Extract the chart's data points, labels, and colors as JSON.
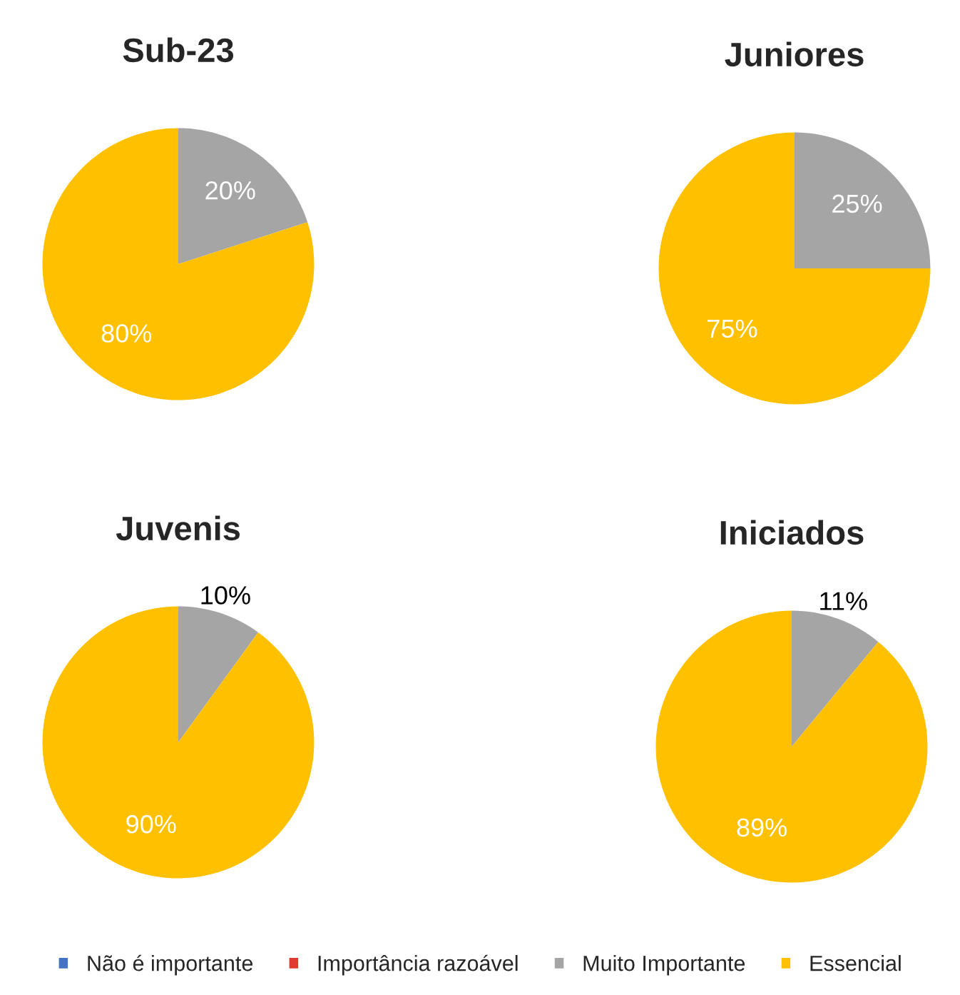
{
  "chart_data": [
    {
      "type": "pie",
      "title": "Sub-23",
      "categories": [
        "Não é importante",
        "Importância razoável",
        "Muito Importante",
        "Essencial"
      ],
      "values": [
        0,
        0,
        20,
        80
      ],
      "colors": [
        "#4472c4",
        "#e03c31",
        "#a5a5a5",
        "#ffc000"
      ],
      "value_labels": [
        null,
        null,
        "20%",
        "80%"
      ],
      "legend": "bottom"
    },
    {
      "type": "pie",
      "title": "Juniores",
      "values": [
        0,
        0,
        25,
        75
      ],
      "colors": [
        "#4472c4",
        "#e03c31",
        "#a5a5a5",
        "#ffc000"
      ],
      "value_labels": [
        null,
        null,
        "25%",
        "75%"
      ]
    },
    {
      "type": "pie",
      "title": "Juvenis",
      "values": [
        0,
        0,
        10,
        90
      ],
      "colors": [
        "#4472c4",
        "#e03c31",
        "#a5a5a5",
        "#ffc000"
      ],
      "value_labels": [
        null,
        null,
        "10%",
        "90%"
      ]
    },
    {
      "type": "pie",
      "title": "Iniciados",
      "values": [
        0,
        0,
        11,
        89
      ],
      "colors": [
        "#4472c4",
        "#e03c31",
        "#a5a5a5",
        "#ffc000"
      ],
      "value_labels": [
        null,
        null,
        "11%",
        "89%"
      ]
    }
  ]
}
